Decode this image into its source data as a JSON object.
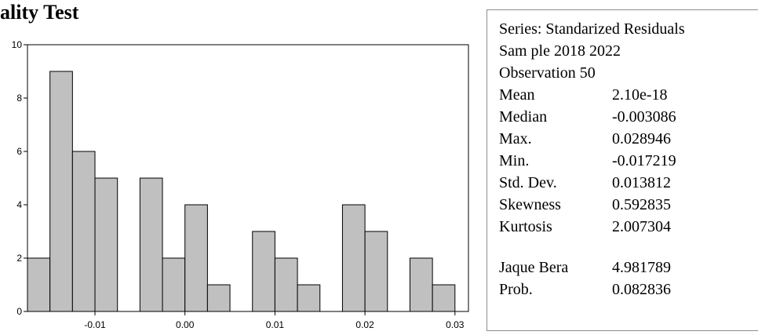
{
  "title_fragment": "ality Test",
  "chart_data": {
    "type": "bar",
    "title": "",
    "xlabel": "",
    "ylabel": "",
    "bin_width": 0.0025,
    "bins": [
      {
        "x0": -0.0175,
        "x1": -0.015,
        "count": 2
      },
      {
        "x0": -0.015,
        "x1": -0.0125,
        "count": 9
      },
      {
        "x0": -0.0125,
        "x1": -0.01,
        "count": 6
      },
      {
        "x0": -0.01,
        "x1": -0.0075,
        "count": 5
      },
      {
        "x0": -0.0075,
        "x1": -0.005,
        "count": 0
      },
      {
        "x0": -0.005,
        "x1": -0.0025,
        "count": 5
      },
      {
        "x0": -0.0025,
        "x1": 0.0,
        "count": 2
      },
      {
        "x0": 0.0,
        "x1": 0.0025,
        "count": 4
      },
      {
        "x0": 0.0025,
        "x1": 0.005,
        "count": 1
      },
      {
        "x0": 0.005,
        "x1": 0.0075,
        "count": 0
      },
      {
        "x0": 0.0075,
        "x1": 0.01,
        "count": 3
      },
      {
        "x0": 0.01,
        "x1": 0.0125,
        "count": 2
      },
      {
        "x0": 0.0125,
        "x1": 0.015,
        "count": 1
      },
      {
        "x0": 0.015,
        "x1": 0.0175,
        "count": 0
      },
      {
        "x0": 0.0175,
        "x1": 0.02,
        "count": 4
      },
      {
        "x0": 0.02,
        "x1": 0.0225,
        "count": 3
      },
      {
        "x0": 0.0225,
        "x1": 0.025,
        "count": 0
      },
      {
        "x0": 0.025,
        "x1": 0.0275,
        "count": 2
      },
      {
        "x0": 0.0275,
        "x1": 0.03,
        "count": 1
      }
    ],
    "xlim": [
      -0.0175,
      0.0315
    ],
    "ylim": [
      0,
      10
    ],
    "x_ticks": [
      {
        "value": -0.01,
        "label": "-0.01"
      },
      {
        "value": 0.0,
        "label": "0.00"
      },
      {
        "value": 0.01,
        "label": "0.01"
      },
      {
        "value": 0.02,
        "label": "0.02"
      },
      {
        "value": 0.03,
        "label": "0.03"
      }
    ],
    "y_ticks": [
      {
        "value": 0,
        "label": "0"
      },
      {
        "value": 2,
        "label": "2"
      },
      {
        "value": 4,
        "label": "4"
      },
      {
        "value": 6,
        "label": "6"
      },
      {
        "value": 8,
        "label": "8"
      },
      {
        "value": 10,
        "label": "10"
      }
    ],
    "bar_color": "#c0c0c0",
    "edge_color": "#000000",
    "grid": false,
    "legend": "none"
  },
  "stats": {
    "series_line": "Series: Standarized Residuals",
    "sample_line": "Sam ple 2018 2022",
    "observation_line": "Observation 50",
    "rows": [
      {
        "label": "Mean",
        "value": "2.10e-18"
      },
      {
        "label": "Median",
        "value": "-0.003086"
      },
      {
        "label": "Max.",
        "value": "0.028946"
      },
      {
        "label": "Min.",
        "value": "-0.017219"
      },
      {
        "label": "Std. Dev.",
        "value": "0.013812"
      },
      {
        "label": "Skewness",
        "value": "0.592835"
      },
      {
        "label": "Kurtosis",
        "value": "2.007304"
      }
    ],
    "test_rows": [
      {
        "label": "Jaque Bera",
        "value": "4.981789"
      },
      {
        "label": "Prob.",
        "value": "0.082836"
      }
    ]
  }
}
